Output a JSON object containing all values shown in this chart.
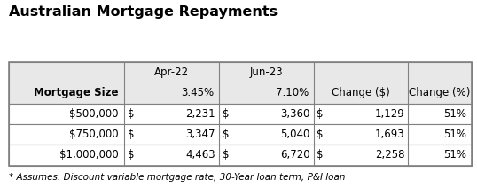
{
  "title": "Australian Mortgage Repayments",
  "footnote": "* Assumes: Discount variable mortgage rate; 30-Year loan term; P&I loan",
  "header_bg": "#e8e8e8",
  "row_bg": "#ffffff",
  "border_color": "#808080",
  "title_fontsize": 11.5,
  "header_fontsize": 8.5,
  "cell_fontsize": 8.5,
  "footnote_fontsize": 7.5,
  "row_data": [
    [
      "$500,000",
      "$",
      "2,231",
      "$",
      "3,360",
      "$",
      "1,129",
      "51%"
    ],
    [
      "$750,000",
      "$",
      "3,347",
      "$",
      "5,040",
      "$",
      "1,693",
      "51%"
    ],
    [
      "$1,000,000",
      "$",
      "4,463",
      "$",
      "6,720",
      "$",
      "2,258",
      "51%"
    ]
  ]
}
